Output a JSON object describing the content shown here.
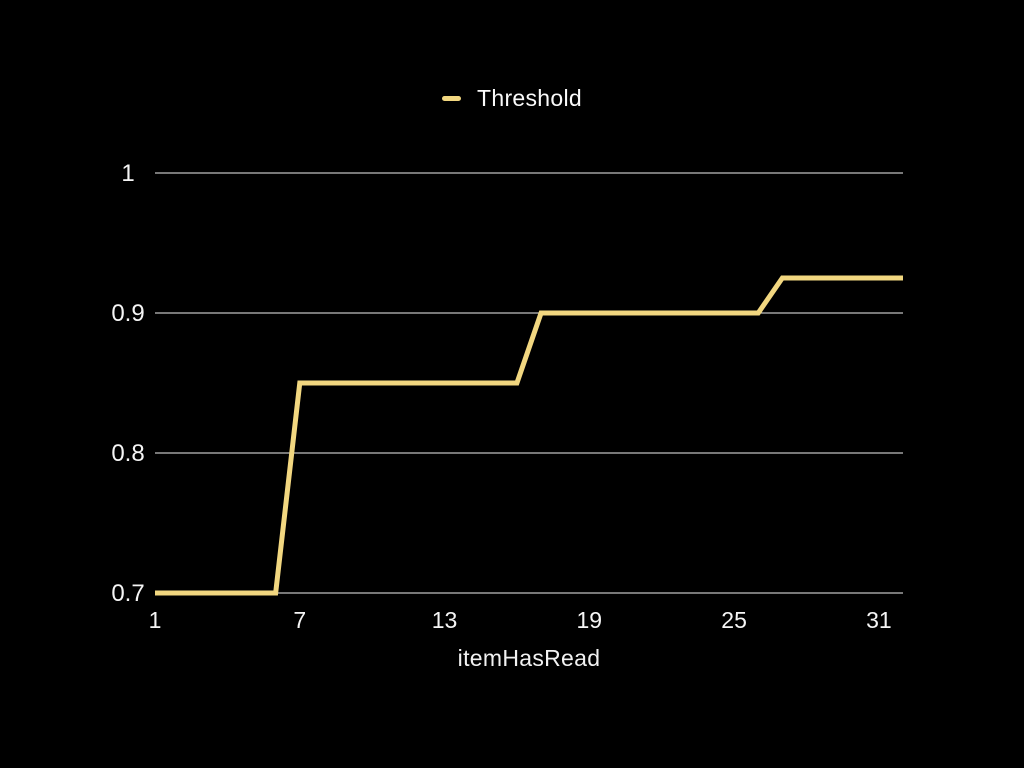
{
  "colors": {
    "background": "#000000",
    "gridline": "#F0F0F0",
    "tick_text": "#F5F5F5",
    "series_yellow": "#F2D780"
  },
  "legend": {
    "label": "Threshold",
    "swatch_color": "#F2D780"
  },
  "chart_data": {
    "type": "line",
    "title": "",
    "xlabel": "itemHasRead",
    "ylabel": "",
    "grid": true,
    "legend_position": "top-center",
    "xlim": [
      1,
      32
    ],
    "ylim": [
      0.7,
      1.0
    ],
    "x_ticks": [
      1,
      7,
      13,
      19,
      25,
      31
    ],
    "y_ticks": [
      0.7,
      0.8,
      0.9,
      1
    ],
    "y_tick_labels": [
      "0.7",
      "0.8",
      "0.9",
      "1"
    ],
    "x": [
      1,
      2,
      3,
      4,
      5,
      6,
      7,
      8,
      9,
      10,
      11,
      12,
      13,
      14,
      15,
      16,
      17,
      18,
      19,
      20,
      21,
      22,
      23,
      24,
      25,
      26,
      27,
      28,
      29,
      30,
      31,
      32
    ],
    "series": [
      {
        "name": "Threshold",
        "color": "#F2D780",
        "line_width": 5,
        "values": [
          0.7,
          0.7,
          0.7,
          0.7,
          0.7,
          0.7,
          0.85,
          0.85,
          0.85,
          0.85,
          0.85,
          0.85,
          0.85,
          0.85,
          0.85,
          0.85,
          0.9,
          0.9,
          0.9,
          0.9,
          0.9,
          0.9,
          0.9,
          0.9,
          0.9,
          0.9,
          0.925,
          0.925,
          0.925,
          0.925,
          0.925,
          0.925
        ]
      }
    ]
  }
}
